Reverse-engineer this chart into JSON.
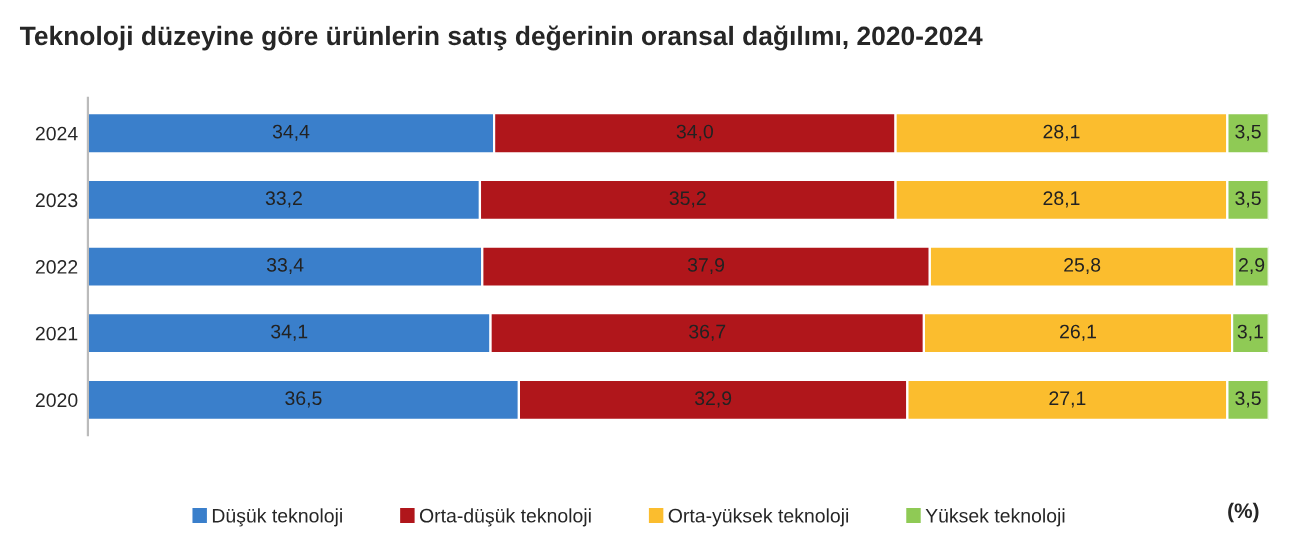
{
  "chart_data": {
    "type": "bar",
    "orientation": "horizontal",
    "stacked": true,
    "legend": "bottom",
    "grid": false,
    "tick_labels": "y",
    "title": "Teknoloji düzeyine göre ürünlerin satış değerinin oransal dağılımı, 2020-2024",
    "categories": [
      "2024",
      "2023",
      "2022",
      "2021",
      "2020"
    ],
    "series": [
      {
        "name": "Düşük teknoloji",
        "color": "#3a7fcb",
        "values": [
          34.4,
          33.2,
          33.4,
          34.1,
          36.5
        ],
        "value_labels": [
          "34,4",
          "33,2",
          "33,4",
          "34,1",
          "36,5"
        ]
      },
      {
        "name": "Orta-düşük teknoloji",
        "color": "#b0161b",
        "values": [
          34.0,
          35.2,
          37.9,
          36.7,
          32.9
        ],
        "value_labels": [
          "34,0",
          "35,2",
          "37,9",
          "36,7",
          "32,9"
        ]
      },
      {
        "name": "Orta-yüksek teknoloji",
        "color": "#fbbd2e",
        "values": [
          28.1,
          28.1,
          25.8,
          26.1,
          27.1
        ],
        "value_labels": [
          "28,1",
          "28,1",
          "25,8",
          "26,1",
          "27,1"
        ]
      },
      {
        "name": "Yüksek teknoloji",
        "color": "#8fca55",
        "values": [
          3.5,
          3.5,
          2.9,
          3.1,
          3.5
        ],
        "value_labels": [
          "3,5",
          "3,5",
          "2,9",
          "3,1",
          "3,5"
        ]
      }
    ],
    "annotations": [
      "(%)"
    ]
  }
}
